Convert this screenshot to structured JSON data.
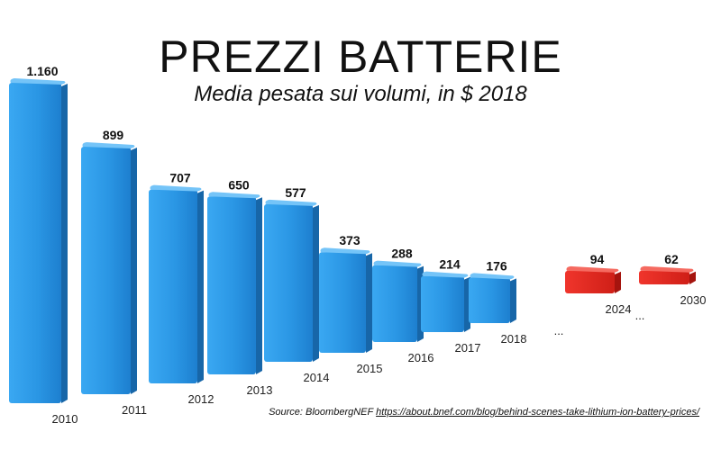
{
  "chart_data": {
    "type": "bar",
    "title": "PREZZI BATTERIE",
    "subtitle": "Media pesata sui volumi, in $ 2018",
    "categories": [
      "2010",
      "2011",
      "2012",
      "2013",
      "2014",
      "2015",
      "2016",
      "2017",
      "2018",
      "2024",
      "2030"
    ],
    "values": [
      1160,
      899,
      707,
      650,
      577,
      373,
      288,
      214,
      176,
      94,
      62
    ],
    "value_labels": [
      "1.160",
      "899",
      "707",
      "650",
      "577",
      "373",
      "288",
      "214",
      "176",
      "94",
      "62"
    ],
    "projected": [
      false,
      false,
      false,
      false,
      false,
      false,
      false,
      false,
      false,
      true,
      true
    ],
    "gap_marker": "...",
    "colors": {
      "actual": "#2b9be8",
      "projected": "#e8241c"
    }
  },
  "source": {
    "prefix": "Source: BloombergNEF",
    "url": "https://about.bnef.com/blog/behind-scenes-take-lithium-ion-battery-prices/"
  }
}
